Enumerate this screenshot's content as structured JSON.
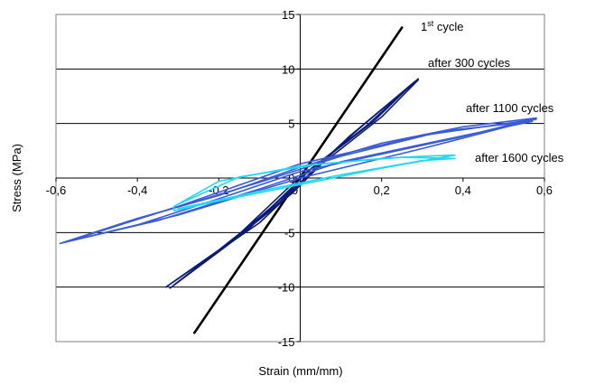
{
  "chart_data": {
    "type": "line",
    "xlabel": "Strain (mm/mm)",
    "ylabel": "Stress (MPa)",
    "xlim": [
      -0.6,
      0.6
    ],
    "ylim": [
      -15,
      15
    ],
    "x_ticks": [
      "-0,6",
      "-0,4",
      "-0,2",
      "0",
      "0,2",
      "0,4",
      "0,6"
    ],
    "y_ticks": [
      "15",
      "10",
      "5",
      "0",
      "-5",
      "-10",
      "-15"
    ],
    "grid": "horizontal",
    "legend": "none",
    "annotations": {
      "first_cycle_base": "1",
      "first_cycle_sup": "st",
      "first_cycle_rest": " cycle",
      "after_300": "after 300 cycles",
      "after_1100": "after 1100 cycles",
      "after_1600": "after 1600 cycles"
    },
    "series": [
      {
        "label": "1st cycle",
        "color": "#000000",
        "loops": [
          [
            [
              -0.26,
              -14.2
            ],
            [
              0.25,
              13.8
            ]
          ]
        ]
      },
      {
        "label": "after 300 cycles",
        "color": "#0a1a7a",
        "loops": [
          [
            [
              -0.33,
              -10
            ],
            [
              -0.2,
              -6.6
            ],
            [
              -0.05,
              -2.2
            ],
            [
              0.1,
              3.1
            ],
            [
              0.2,
              6.3
            ],
            [
              0.29,
              9
            ],
            [
              0.2,
              5.6
            ],
            [
              0.05,
              1.2
            ],
            [
              -0.1,
              -4.1
            ],
            [
              -0.33,
              -10
            ]
          ],
          [
            [
              -0.32,
              -10.1
            ],
            [
              -0.18,
              -6.2
            ],
            [
              -0.02,
              -1.4
            ],
            [
              0.12,
              3.8
            ],
            [
              0.22,
              6.9
            ],
            [
              0.28,
              8.8
            ],
            [
              0.18,
              5.2
            ],
            [
              0.02,
              0.6
            ],
            [
              -0.13,
              -4.8
            ],
            [
              -0.32,
              -10.1
            ]
          ],
          [
            [
              -0.31,
              -9.8
            ],
            [
              -0.15,
              -5.2
            ],
            [
              0.0,
              -0.4
            ],
            [
              0.14,
              4.4
            ],
            [
              0.29,
              9.1
            ],
            [
              0.16,
              4.7
            ],
            [
              -0.01,
              -0.2
            ],
            [
              -0.16,
              -5.5
            ],
            [
              -0.31,
              -9.8
            ]
          ]
        ]
      },
      {
        "label": "after 1100 cycles",
        "color": "#3a5ad6",
        "loops": [
          [
            [
              -0.59,
              -6
            ],
            [
              -0.4,
              -4.3
            ],
            [
              -0.2,
              -1.9
            ],
            [
              0.0,
              0.6
            ],
            [
              0.2,
              2.2
            ],
            [
              0.4,
              3.8
            ],
            [
              0.58,
              5.5
            ],
            [
              0.4,
              4.7
            ],
            [
              0.2,
              3.2
            ],
            [
              0.0,
              1.0
            ],
            [
              -0.2,
              -1.6
            ],
            [
              -0.4,
              -3.7
            ],
            [
              -0.59,
              -6
            ]
          ],
          [
            [
              -0.57,
              -5.8
            ],
            [
              -0.35,
              -3.9
            ],
            [
              -0.1,
              -1.0
            ],
            [
              0.1,
              1.5
            ],
            [
              0.3,
              3.1
            ],
            [
              0.57,
              5.2
            ],
            [
              0.35,
              4.3
            ],
            [
              0.1,
              2.0
            ],
            [
              -0.1,
              -0.4
            ],
            [
              -0.35,
              -3.2
            ],
            [
              -0.57,
              -5.8
            ]
          ],
          [
            [
              -0.58,
              -5.9
            ],
            [
              -0.3,
              -3.4
            ],
            [
              0.0,
              0.0
            ],
            [
              0.3,
              2.7
            ],
            [
              0.58,
              5.4
            ],
            [
              0.3,
              3.9
            ],
            [
              0.0,
              1.3
            ],
            [
              -0.3,
              -2.6
            ],
            [
              -0.58,
              -5.9
            ]
          ]
        ]
      },
      {
        "label": "after 1600 cycles",
        "color": "#22d8f0",
        "loops": [
          [
            [
              -0.31,
              -3
            ],
            [
              -0.2,
              -2.1
            ],
            [
              0.0,
              -0.6
            ],
            [
              0.2,
              0.9
            ],
            [
              0.38,
              2.1
            ],
            [
              0.3,
              2.0
            ],
            [
              0.2,
              1.8
            ],
            [
              0.0,
              1.1
            ],
            [
              -0.2,
              -0.3
            ],
            [
              -0.31,
              -2.6
            ],
            [
              -0.31,
              -3
            ]
          ],
          [
            [
              -0.3,
              -2.8
            ],
            [
              -0.1,
              -1.2
            ],
            [
              0.1,
              0.3
            ],
            [
              0.3,
              1.6
            ],
            [
              0.38,
              1.8
            ],
            [
              0.25,
              1.9
            ],
            [
              0.05,
              1.3
            ],
            [
              -0.15,
              0.1
            ],
            [
              -0.3,
              -2.4
            ]
          ]
        ]
      }
    ]
  }
}
